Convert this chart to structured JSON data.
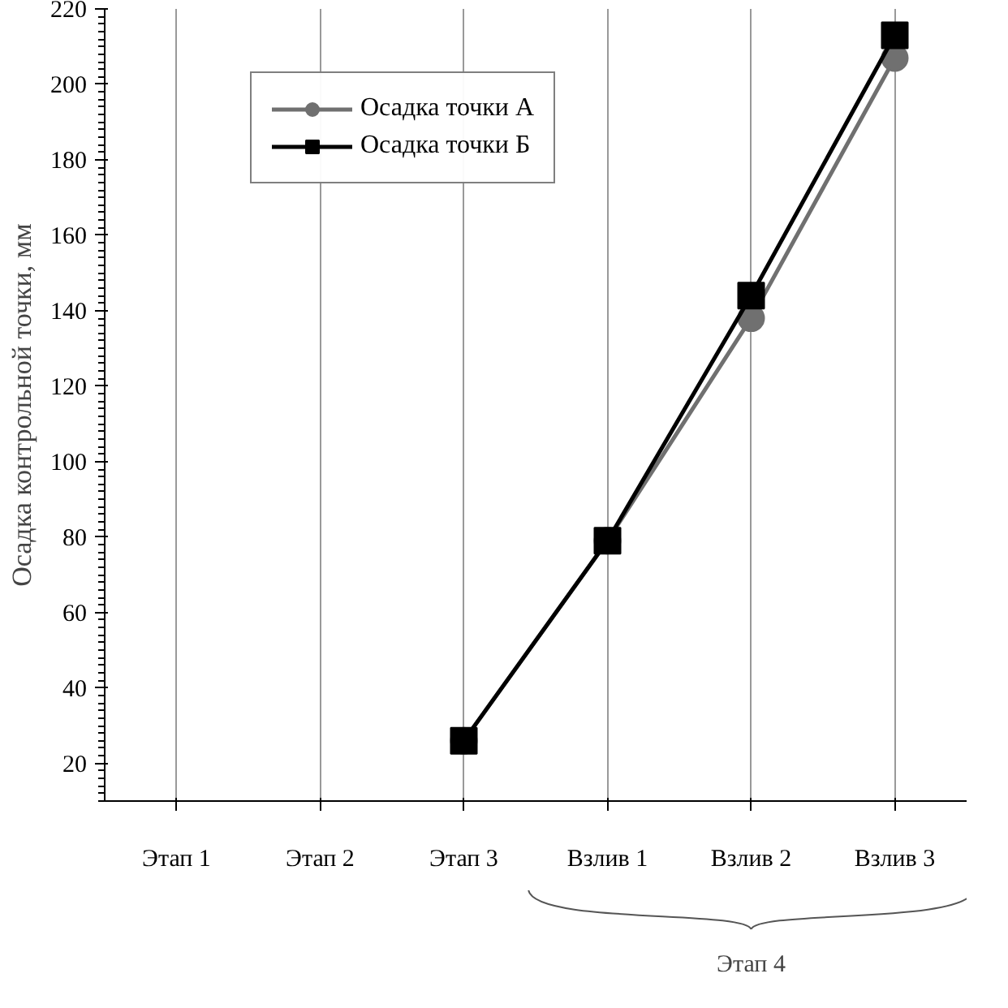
{
  "chart_data": {
    "type": "line",
    "ylabel": "Осадка контрольной точки, мм",
    "categories": [
      "Этап 1",
      "Этап 2",
      "Этап 3",
      "Взлив 1",
      "Взлив 2",
      "Взлив 3"
    ],
    "series": [
      {
        "name": "Осадка точки А",
        "color": "#707070",
        "marker": "circle",
        "values": [
          null,
          null,
          26,
          79,
          138,
          207
        ]
      },
      {
        "name": "Осадка точки Б",
        "color": "#000000",
        "marker": "square",
        "values": [
          null,
          null,
          26,
          79,
          144,
          213
        ]
      }
    ],
    "ylim": [
      10,
      220
    ],
    "yticks": [
      20,
      40,
      60,
      80,
      100,
      120,
      140,
      160,
      180,
      200,
      220
    ],
    "grid": "x",
    "legend": "top left",
    "line_style": "solid",
    "annotations": [
      "Этап 4"
    ]
  }
}
